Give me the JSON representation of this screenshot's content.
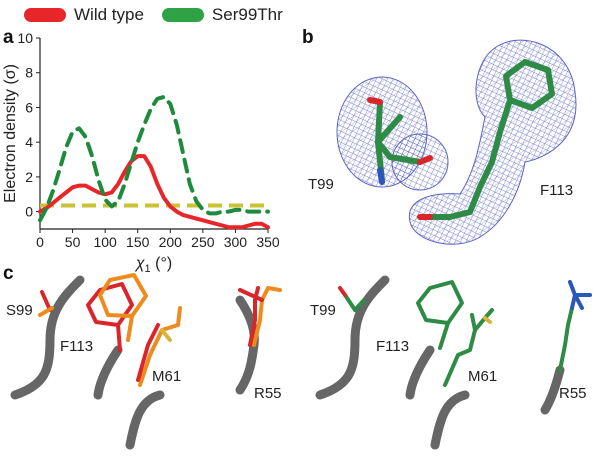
{
  "panels": {
    "a": "a",
    "b": "b",
    "c": "c"
  },
  "colors": {
    "wild_type": "#e8262a",
    "ser99thr": "#1e8a3c",
    "threshold": "#c8c234",
    "mesh": "#5a63c4",
    "backbone": "#666666",
    "orange": "#ef8a1c",
    "yellow": "#d9b43a",
    "blue": "#2a58b8",
    "red_atom": "#d9262a"
  },
  "legend": [
    {
      "label": "Wild type",
      "color": "#e8262a"
    },
    {
      "label": "Ser99Thr",
      "color": "#2ea245"
    }
  ],
  "chart_data": {
    "type": "line",
    "title": "",
    "ylabel": "Electron density (σ)",
    "xlabel": "χ1 (°)",
    "xlabel_main": "χ",
    "xlabel_sub": "1",
    "xlabel_unit": " (°)",
    "xlim": [
      0,
      350
    ],
    "ylim": [
      -1,
      10
    ],
    "xticks": [
      "0",
      "50",
      "100",
      "150",
      "200",
      "250",
      "300",
      "350"
    ],
    "yticks": [
      "0",
      "2",
      "4",
      "6",
      "8",
      "10"
    ],
    "threshold": 0.35,
    "series": [
      {
        "name": "Wild type",
        "style": "solid",
        "x": [
          0,
          10,
          20,
          30,
          40,
          50,
          60,
          70,
          80,
          90,
          100,
          110,
          120,
          130,
          140,
          150,
          160,
          170,
          180,
          190,
          200,
          210,
          220,
          230,
          240,
          250,
          260,
          270,
          280,
          290,
          300,
          310,
          320,
          330,
          340,
          350
        ],
        "y": [
          0,
          0.2,
          0.5,
          0.8,
          1.1,
          1.4,
          1.5,
          1.5,
          1.3,
          1.1,
          1.0,
          1.1,
          1.6,
          2.3,
          2.9,
          3.2,
          3.2,
          2.6,
          1.6,
          0.8,
          0.3,
          0.0,
          -0.2,
          -0.3,
          -0.4,
          -0.5,
          -0.6,
          -0.7,
          -0.8,
          -0.9,
          -0.9,
          -0.9,
          -0.8,
          -0.7,
          -0.7,
          -0.9
        ]
      },
      {
        "name": "Ser99Thr",
        "style": "dashed",
        "x": [
          0,
          10,
          20,
          30,
          40,
          50,
          60,
          70,
          80,
          90,
          100,
          110,
          120,
          130,
          140,
          150,
          160,
          170,
          180,
          190,
          200,
          210,
          220,
          230,
          240,
          250,
          260,
          270,
          280,
          290,
          300,
          310,
          320,
          330,
          340,
          350
        ],
        "y": [
          -0.5,
          0.2,
          1.2,
          2.4,
          3.7,
          4.6,
          4.8,
          4.3,
          3.2,
          1.8,
          0.7,
          0.3,
          0.6,
          1.6,
          2.8,
          4.0,
          5.0,
          5.9,
          6.5,
          6.6,
          6.2,
          5.0,
          3.3,
          1.6,
          0.6,
          0.1,
          -0.1,
          -0.1,
          0.0,
          0.0,
          0.1,
          0.1,
          0.0,
          0.0,
          0.0,
          0.0
        ]
      }
    ]
  },
  "panel_b_labels": {
    "t99": "T99",
    "f113": "F113"
  },
  "panel_c_labels": {
    "s99": "S99",
    "f113_wt": "F113",
    "m61_wt": "M61",
    "r55_wt": "R55",
    "t99": "T99",
    "f113_mut": "F113",
    "m61_mut": "M61",
    "r55_mut": "R55"
  }
}
